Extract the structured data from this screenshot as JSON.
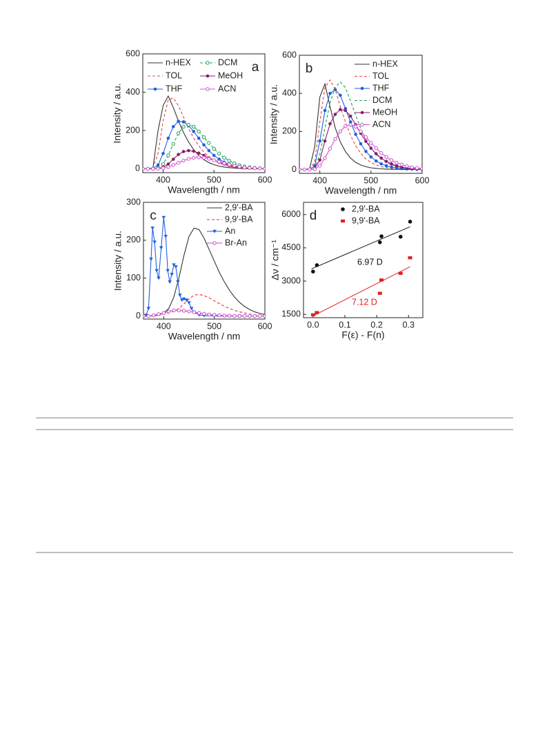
{
  "chart_data": [
    {
      "type": "line",
      "panel_label": "a",
      "xlabel": "Wavelength / nm",
      "ylabel": "Intensity / a.u.",
      "xlim": [
        360,
        600
      ],
      "ylim": [
        -20,
        600
      ],
      "xticks": [
        400,
        500,
        600
      ],
      "yticks": [
        0,
        200,
        400,
        600
      ],
      "grid": false,
      "legend": "upper",
      "legend_columns": 2,
      "x": [
        360,
        370,
        380,
        390,
        400,
        410,
        420,
        430,
        440,
        450,
        460,
        470,
        480,
        490,
        500,
        510,
        520,
        530,
        540,
        550,
        560,
        570,
        580,
        590,
        600
      ],
      "series": [
        {
          "name": "n-HEX",
          "color": "#333333",
          "dash": false,
          "marker": "none",
          "values": [
            0,
            0,
            5,
            200,
            330,
            380,
            320,
            250,
            190,
            140,
            100,
            70,
            48,
            32,
            22,
            14,
            9,
            6,
            4,
            2,
            1,
            1,
            0,
            0,
            0
          ]
        },
        {
          "name": "TOL",
          "color": "#e8413f",
          "dash": true,
          "marker": "none",
          "values": [
            0,
            0,
            5,
            80,
            250,
            360,
            370,
            330,
            270,
            210,
            160,
            120,
            88,
            62,
            44,
            30,
            20,
            13,
            8,
            5,
            3,
            2,
            1,
            0,
            0
          ]
        },
        {
          "name": "THF",
          "color": "#1f5fe0",
          "dash": false,
          "marker": "circle",
          "values": [
            0,
            0,
            2,
            20,
            80,
            160,
            220,
            248,
            245,
            225,
            195,
            160,
            125,
            95,
            70,
            50,
            35,
            24,
            16,
            10,
            6,
            4,
            2,
            1,
            0
          ]
        },
        {
          "name": "DCM",
          "color": "#1aa04a",
          "dash": true,
          "marker": "circle-open",
          "values": [
            0,
            0,
            0,
            5,
            25,
            70,
            130,
            185,
            220,
            230,
            220,
            195,
            165,
            135,
            105,
            80,
            58,
            42,
            29,
            19,
            12,
            8,
            5,
            3,
            1
          ]
        },
        {
          "name": "MeOH",
          "color": "#8a1a6e",
          "dash": false,
          "marker": "circle",
          "values": [
            0,
            0,
            0,
            2,
            8,
            25,
            50,
            75,
            90,
            95,
            92,
            82,
            70,
            57,
            45,
            34,
            25,
            18,
            12,
            8,
            5,
            3,
            2,
            1,
            0
          ]
        },
        {
          "name": "ACN",
          "color": "#d44fd4",
          "dash": false,
          "marker": "circle-open",
          "values": [
            0,
            0,
            0,
            1,
            3,
            10,
            20,
            32,
            43,
            52,
            58,
            60,
            58,
            52,
            45,
            37,
            29,
            22,
            16,
            11,
            7,
            5,
            3,
            2,
            1
          ]
        }
      ]
    },
    {
      "type": "line",
      "panel_label": "b",
      "xlabel": "Wavelength / nm",
      "ylabel": "Intensity / a.u.",
      "xlim": [
        360,
        600
      ],
      "ylim": [
        -20,
        600
      ],
      "xticks": [
        400,
        500,
        600
      ],
      "yticks": [
        0,
        200,
        400,
        600
      ],
      "grid": false,
      "legend": "upper right",
      "legend_columns": 1,
      "x": [
        360,
        370,
        380,
        390,
        400,
        410,
        420,
        430,
        440,
        450,
        460,
        470,
        480,
        490,
        500,
        510,
        520,
        530,
        540,
        550,
        560,
        570,
        580,
        590,
        600
      ],
      "series": [
        {
          "name": "n-HEX",
          "color": "#333333",
          "dash": false,
          "marker": "none",
          "values": [
            0,
            0,
            5,
            120,
            380,
            450,
            330,
            220,
            145,
            95,
            60,
            38,
            24,
            15,
            9,
            6,
            4,
            2,
            1,
            1,
            0,
            0,
            0,
            0,
            0
          ]
        },
        {
          "name": "TOL",
          "color": "#e8413f",
          "dash": true,
          "marker": "none",
          "values": [
            0,
            0,
            2,
            40,
            250,
            430,
            470,
            420,
            330,
            250,
            180,
            125,
            85,
            56,
            37,
            24,
            15,
            10,
            6,
            4,
            2,
            1,
            1,
            0,
            0
          ]
        },
        {
          "name": "THF",
          "color": "#1f5fe0",
          "dash": false,
          "marker": "circle",
          "values": [
            0,
            0,
            1,
            20,
            150,
            310,
            400,
            420,
            390,
            320,
            250,
            185,
            135,
            95,
            66,
            45,
            30,
            20,
            13,
            8,
            5,
            3,
            2,
            1,
            0
          ]
        },
        {
          "name": "DCM",
          "color": "#1aa04a",
          "dash": true,
          "marker": "none",
          "values": [
            0,
            0,
            0,
            8,
            80,
            220,
            350,
            430,
            460,
            430,
            360,
            285,
            215,
            158,
            113,
            80,
            55,
            37,
            25,
            16,
            10,
            6,
            4,
            2,
            1
          ]
        },
        {
          "name": "MeOH",
          "color": "#8a1a6e",
          "dash": false,
          "marker": "circle",
          "values": [
            0,
            0,
            0,
            5,
            50,
            150,
            240,
            290,
            315,
            310,
            280,
            235,
            190,
            148,
            112,
            83,
            60,
            43,
            30,
            20,
            13,
            8,
            5,
            3,
            2
          ]
        },
        {
          "name": "ACN",
          "color": "#d44fd4",
          "dash": false,
          "marker": "circle-open",
          "values": [
            0,
            0,
            0,
            2,
            20,
            60,
            110,
            160,
            200,
            228,
            235,
            225,
            200,
            170,
            140,
            112,
            87,
            66,
            49,
            36,
            26,
            18,
            12,
            8,
            5
          ]
        }
      ]
    },
    {
      "type": "line",
      "panel_label": "c",
      "xlabel": "Wavelength / nm",
      "ylabel": "Intensity / a.u.",
      "xlim": [
        360,
        600
      ],
      "ylim": [
        -8,
        300
      ],
      "xticks": [
        400,
        500,
        600
      ],
      "yticks": [
        0,
        100,
        200,
        300
      ],
      "grid": false,
      "legend": "upper right",
      "legend_columns": 1,
      "x": [
        360,
        370,
        380,
        390,
        400,
        410,
        420,
        430,
        440,
        450,
        460,
        470,
        480,
        490,
        500,
        510,
        520,
        530,
        540,
        550,
        560,
        570,
        580,
        590,
        600
      ],
      "series": [
        {
          "name": "2,9'-BA",
          "color": "#333333",
          "dash": false,
          "marker": "none",
          "values": [
            0,
            0,
            1,
            3,
            8,
            20,
            50,
            100,
            160,
            210,
            232,
            228,
            205,
            175,
            145,
            115,
            90,
            68,
            50,
            36,
            25,
            17,
            11,
            7,
            4
          ]
        },
        {
          "name": "9,9'-BA",
          "color": "#e03030",
          "dash": true,
          "marker": "none",
          "values": [
            0,
            0,
            1,
            2,
            5,
            8,
            12,
            20,
            32,
            45,
            55,
            57,
            54,
            48,
            40,
            33,
            26,
            20,
            15,
            11,
            8,
            5,
            3,
            2,
            1
          ]
        },
        {
          "name": "An",
          "color": "#2060e0",
          "dash": false,
          "marker": "triangle-down",
          "x": [
            360,
            365,
            370,
            375,
            378,
            382,
            386,
            390,
            395,
            400,
            404,
            408,
            412,
            416,
            420,
            424,
            428,
            432,
            436,
            440,
            445,
            450,
            455,
            460,
            470,
            480,
            500,
            550,
            600
          ],
          "values": [
            0,
            2,
            20,
            150,
            232,
            195,
            120,
            100,
            180,
            260,
            210,
            120,
            90,
            110,
            135,
            130,
            90,
            55,
            42,
            45,
            42,
            35,
            20,
            10,
            3,
            1,
            0,
            0,
            0
          ]
        },
        {
          "name": "Br-An",
          "color": "#cc44cc",
          "dash": false,
          "marker": "circle-open",
          "values": [
            0,
            0,
            2,
            5,
            8,
            12,
            15,
            15,
            14,
            12,
            10,
            8,
            6,
            4,
            3,
            2,
            1,
            1,
            0,
            0,
            0,
            0,
            0,
            0,
            0
          ]
        }
      ]
    },
    {
      "type": "scatter",
      "panel_label": "d",
      "xlabel": "F(ε) - F(n)",
      "ylabel": "Δν / cm⁻¹",
      "xlim": [
        -0.03,
        0.345
      ],
      "ylim": [
        1350,
        6550
      ],
      "xticks": [
        {
          "value": 0,
          "label": "0.0"
        },
        0.1,
        0.2,
        0.3
      ],
      "yticks": [
        1500,
        3000,
        4500,
        6000
      ],
      "grid": false,
      "legend": "upper left",
      "legend_columns": 1,
      "series": [
        {
          "name": "2,9'-BA",
          "color": "#111111",
          "x": [
            0.0,
            0.012,
            0.21,
            0.215,
            0.275,
            0.305
          ],
          "values": [
            3430,
            3720,
            4750,
            5020,
            5000,
            5680
          ],
          "fit": {
            "x": [
              -0.005,
              0.305
            ],
            "values": [
              3550,
              5450
            ]
          },
          "annotation": "6.97 D"
        },
        {
          "name": "9,9'-BA",
          "color": "#e02020",
          "x": [
            0.0,
            0.012,
            0.21,
            0.215,
            0.275,
            0.305
          ],
          "values": [
            1480,
            1580,
            2450,
            3050,
            3350,
            4050
          ],
          "fit": {
            "x": [
              0.0,
              0.305
            ],
            "values": [
              1430,
              3650
            ]
          },
          "annotation": "7.12 D"
        }
      ]
    }
  ]
}
